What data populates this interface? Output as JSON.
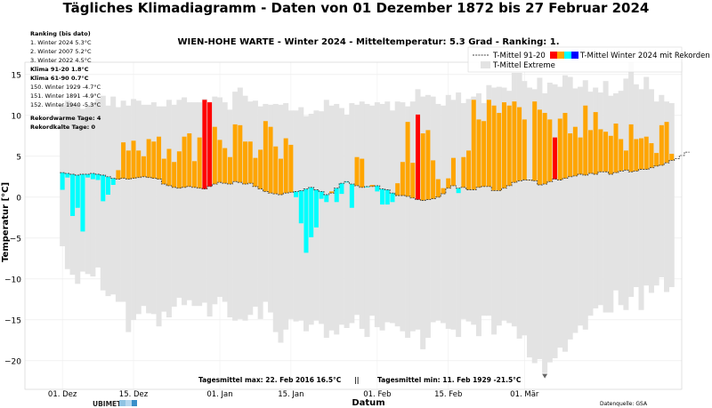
{
  "title": "Tägliches Klimadiagramm - Daten von 01 Dezember 1872 bis 27 Februar 2024",
  "subtitle": "WIEN-HOHE WARTE - Winter 2024 - Mitteltemperatur: 5.3 Grad - Ranking: 1.",
  "side_panel": {
    "heading": "Ranking (bis dato)",
    "top": [
      "1.  Winter 2024  5.3°C",
      "2.  Winter 2007  5.2°C",
      "3.  Winter 2022  4.5°C"
    ],
    "clima_9120": "Klima 91-20 1.8°C",
    "clima_6190": "Klima 61-90 0.7°C",
    "bottom": [
      "150.  Winter 1929  -4.7°C",
      "151.  Winter 1891  -4.9°C",
      "152.  Winter 1940  -5.3°C"
    ],
    "warm_days": "Rekordwarme Tage: 4",
    "cold_days": "Rekordkalte Tage: 0"
  },
  "legend": {
    "mean_label": "T-Mittel 91-20",
    "winter_label": "T-Mittel Winter 2024 mit Rekorden",
    "extreme_label": "T-Mittel Extreme",
    "swatch_colors": [
      "#ff0000",
      "#ffa500",
      "#00ffff",
      "#0000ff"
    ]
  },
  "annotations": {
    "max_text": "Tagesmittel max: 22. Feb 2016 16.5°C",
    "separator": "||",
    "min_text": "Tagesmittel min: 11. Feb 1929 -21.5°C"
  },
  "xlabel": "Datum",
  "ylabel": "Temperatur [°C]",
  "source": "Datenquelle: GSA",
  "logo": {
    "text": "UBIMET"
  },
  "colors": {
    "warm": "#ffa500",
    "record_warm": "#ff0000",
    "cold": "#00ffff",
    "extreme_band": "#e3e3e3",
    "mean_line": "#444444"
  },
  "chart_data": {
    "type": "bar",
    "x_start": "2023-12-01",
    "x_ticks": [
      "01. Dez",
      "15. Dez",
      "01. Jan",
      "15. Jan",
      "01. Feb",
      "15. Feb",
      "01. Mär"
    ],
    "ylim": [
      -23.5,
      16.5
    ],
    "y_ticks": [
      -20,
      -15,
      -10,
      -5,
      0,
      5,
      10,
      15
    ],
    "grid": true,
    "legend_position": "top-right",
    "mean_9120": [
      3.0,
      2.9,
      2.8,
      2.7,
      2.8,
      2.8,
      2.9,
      2.8,
      2.7,
      2.5,
      2.3,
      2.2,
      2.3,
      2.2,
      2.3,
      2.4,
      2.5,
      2.4,
      2.3,
      2.2,
      1.6,
      1.4,
      1.2,
      1.1,
      1.2,
      1.3,
      1.2,
      1.1,
      1.0,
      1.3,
      1.6,
      1.8,
      1.7,
      1.6,
      1.9,
      1.8,
      1.6,
      1.7,
      1.3,
      1.0,
      0.7,
      0.5,
      0.4,
      0.3,
      0.5,
      0.6,
      0.7,
      0.8,
      1.0,
      1.2,
      0.9,
      0.7,
      0.3,
      0.5,
      1.1,
      1.7,
      1.9,
      1.6,
      1.4,
      1.2,
      1.3,
      1.3,
      1.4,
      1.0,
      0.9,
      0.5,
      0.2,
      0.2,
      0.1,
      -0.1,
      -0.3,
      -0.4,
      -0.3,
      -0.2,
      0.0,
      0.4,
      1.1,
      1.4,
      1.1,
      1.2,
      0.9,
      0.9,
      1.2,
      1.3,
      1.3,
      0.8,
      0.8,
      1.1,
      1.4,
      1.8,
      2.0,
      2.1,
      2.1,
      2.0,
      1.5,
      1.6,
      1.9,
      2.2,
      2.1,
      2.3,
      2.5,
      2.6,
      2.8,
      2.7,
      2.9,
      2.8,
      3.1,
      3.1,
      2.8,
      3.0,
      3.2,
      3.3,
      3.1,
      3.2,
      3.4,
      3.4,
      3.6,
      3.8,
      3.9,
      4.2,
      4.5,
      4.7,
      5.1,
      5.5
    ],
    "winter_2024": [
      0.9,
      2.4,
      -2.3,
      -1.3,
      -4.2,
      2.4,
      2.2,
      2.1,
      -0.5,
      0.3,
      1.5,
      3.3,
      6.7,
      5.7,
      6.9,
      5.7,
      5.0,
      7.1,
      6.8,
      7.4,
      4.7,
      5.9,
      4.3,
      5.6,
      7.4,
      7.8,
      4.4,
      7.3,
      11.9,
      11.6,
      8.6,
      7.0,
      6.0,
      4.9,
      8.9,
      8.8,
      6.8,
      6.8,
      4.8,
      5.8,
      9.3,
      8.6,
      6.2,
      4.7,
      7.2,
      6.4,
      0.0,
      -3.2,
      -6.8,
      -4.9,
      -3.7,
      -0.2,
      -0.6,
      0.7,
      -0.6,
      0.4,
      1.8,
      -1.3,
      4.9,
      4.7,
      1.2,
      1.5,
      0.7,
      -0.9,
      -0.9,
      -0.6,
      1.7,
      4.3,
      9.2,
      4.2,
      10.1,
      7.8,
      8.2,
      4.5,
      2.2,
      1.1,
      2.3,
      4.8,
      0.5,
      4.9,
      5.7,
      11.9,
      9.5,
      9.3,
      11.9,
      11.2,
      10.3,
      11.6,
      11.2,
      11.7,
      11.0,
      9.5,
      2.1,
      11.7,
      10.7,
      10.3,
      9.5,
      7.3,
      9.6,
      10.3,
      7.8,
      8.6,
      7.3,
      11.2,
      8.2,
      10.4,
      8.3,
      8.0,
      7.5,
      9.0,
      7.1,
      5.7,
      8.9,
      7.1,
      7.2,
      7.4,
      6.6,
      5.4,
      8.8,
      9.2,
      5.3
    ],
    "records": [
      28,
      29,
      70,
      97
    ],
    "extreme_max": [
      11.3,
      11.8,
      11.5,
      11.3,
      10.8,
      11.2,
      11.5,
      12.0,
      12.4,
      11.2,
      12.3,
      11.0,
      11.8,
      11.2,
      12.0,
      11.8,
      11.3,
      11.3,
      11.6,
      11.1,
      11.1,
      11.9,
      11.3,
      11.9,
      12.2,
      11.6,
      11.6,
      11.6,
      12.0,
      11.6,
      12.3,
      12.2,
      11.6,
      10.7,
      12.9,
      13.4,
      12.4,
      11.7,
      11.8,
      11.1,
      11.4,
      11.3,
      11.4,
      11.3,
      11.5,
      10.6,
      10.6,
      11.0,
      9.9,
      10.2,
      10.6,
      10.5,
      11.9,
      11.2,
      11.4,
      10.9,
      10.1,
      11.5,
      11.3,
      11.7,
      11.4,
      11.2,
      11.6,
      11.4,
      11.7,
      10.6,
      11.7,
      11.6,
      11.1,
      11.7,
      13.2,
      12.3,
      12.5,
      12.3,
      11.4,
      11.2,
      12.5,
      11.9,
      12.8,
      11.5,
      12.0,
      12.3,
      12.7,
      11.5,
      13.7,
      13.4,
      13.5,
      13.4,
      13.0,
      15.2,
      15.2,
      14.2,
      13.4,
      13.2,
      14.6,
      12.7,
      14.0,
      13.8,
      13.5,
      14.9,
      14.7,
      13.3,
      13.5,
      14.3,
      12.9,
      13.4,
      12.8,
      14.2,
      12.4,
      12.7,
      13.0,
      14.5,
      16.5,
      13.8,
      13.2,
      14.7,
      13.2,
      11.7,
      12.5,
      11.7,
      11.5
    ],
    "extreme_min": [
      -6.0,
      -8.8,
      -9.5,
      -10.6,
      -9.1,
      -9.4,
      -9.7,
      -8.6,
      -11.4,
      -12.1,
      -11.9,
      -12.8,
      -12.8,
      -16.5,
      -15.0,
      -14.3,
      -13.3,
      -14.2,
      -14.3,
      -15.8,
      -14.0,
      -14.7,
      -13.4,
      -12.3,
      -13.2,
      -12.6,
      -13.3,
      -13.3,
      -12.9,
      -14.6,
      -13.1,
      -12.2,
      -12.8,
      -14.7,
      -15.1,
      -14.9,
      -15.1,
      -14.4,
      -13.4,
      -14.9,
      -12.8,
      -14.1,
      -16.5,
      -17.8,
      -16.2,
      -14.9,
      -15.2,
      -15.1,
      -16.4,
      -15.6,
      -15.1,
      -15.5,
      -17.2,
      -16.3,
      -16.8,
      -15.6,
      -16.0,
      -15.4,
      -14.4,
      -16.1,
      -17.1,
      -14.5,
      -15.9,
      -16.3,
      -15.3,
      -15.4,
      -15.8,
      -16.4,
      -17.2,
      -16.4,
      -16.2,
      -18.6,
      -17.2,
      -15.3,
      -15.1,
      -15.4,
      -16.1,
      -16.2,
      -17.1,
      -14.9,
      -15.2,
      -15.6,
      -17.0,
      -14.5,
      -14.5,
      -16.8,
      -15.7,
      -15.1,
      -15.4,
      -15.8,
      -17.3,
      -16.9,
      -19.6,
      -20.3,
      -19.8,
      -21.5,
      -20.2,
      -19.7,
      -18.4,
      -18.9,
      -17.4,
      -16.6,
      -15.7,
      -16.2,
      -14.5,
      -13.6,
      -13.2,
      -14.1,
      -14.1,
      -11.4,
      -13.2,
      -13.8,
      -12.2,
      -11.0,
      -13.8,
      -10.8,
      -11.7,
      -10.8,
      -9.8,
      -11.6,
      -11.0,
      -7.3
    ]
  }
}
